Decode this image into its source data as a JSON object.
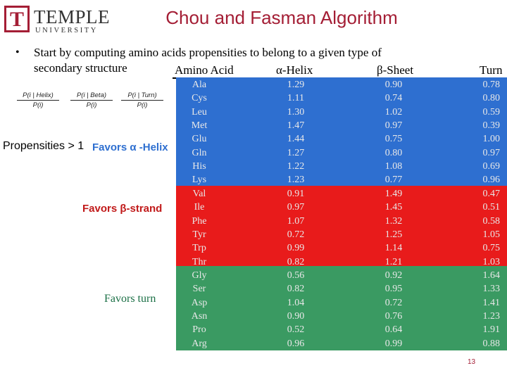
{
  "logo": {
    "letter": "T",
    "name": "TEMPLE",
    "sub": "UNIVERSITY",
    "brand_color": "#a41e35"
  },
  "slide": {
    "title": "Chou and Fasman Algorithm",
    "bullet": "•",
    "intro": "Start by computing amino acids propensities to belong to a given type of secondary structure",
    "page_number": "13"
  },
  "table": {
    "headers": {
      "amino_acid": "Amino Acid",
      "helix": "α-Helix",
      "sheet": "β-Sheet",
      "turn": "Turn"
    },
    "band_colors": {
      "helix": "#2e6fd0",
      "strand": "#e81b1b",
      "turn": "#3a9a62"
    },
    "rows": [
      {
        "aa": "Ala",
        "helix": "1.29",
        "sheet": "0.90",
        "turn": "0.78"
      },
      {
        "aa": "Cys",
        "helix": "1.11",
        "sheet": "0.74",
        "turn": "0.80"
      },
      {
        "aa": "Leu",
        "helix": "1.30",
        "sheet": "1.02",
        "turn": "0.59"
      },
      {
        "aa": "Met",
        "helix": "1.47",
        "sheet": "0.97",
        "turn": "0.39"
      },
      {
        "aa": "Glu",
        "helix": "1.44",
        "sheet": "0.75",
        "turn": "1.00"
      },
      {
        "aa": "Gln",
        "helix": "1.27",
        "sheet": "0.80",
        "turn": "0.97"
      },
      {
        "aa": "His",
        "helix": "1.22",
        "sheet": "1.08",
        "turn": "0.69"
      },
      {
        "aa": "Lys",
        "helix": "1.23",
        "sheet": "0.77",
        "turn": "0.96"
      },
      {
        "aa": "Val",
        "helix": "0.91",
        "sheet": "1.49",
        "turn": "0.47"
      },
      {
        "aa": "Ile",
        "helix": "0.97",
        "sheet": "1.45",
        "turn": "0.51"
      },
      {
        "aa": "Phe",
        "helix": "1.07",
        "sheet": "1.32",
        "turn": "0.58"
      },
      {
        "aa": "Tyr",
        "helix": "0.72",
        "sheet": "1.25",
        "turn": "1.05"
      },
      {
        "aa": "Trp",
        "helix": "0.99",
        "sheet": "1.14",
        "turn": "0.75"
      },
      {
        "aa": "Thr",
        "helix": "0.82",
        "sheet": "1.21",
        "turn": "1.03"
      },
      {
        "aa": "Gly",
        "helix": "0.56",
        "sheet": "0.92",
        "turn": "1.64"
      },
      {
        "aa": "Ser",
        "helix": "0.82",
        "sheet": "0.95",
        "turn": "1.33"
      },
      {
        "aa": "Asp",
        "helix": "1.04",
        "sheet": "0.72",
        "turn": "1.41"
      },
      {
        "aa": "Asn",
        "helix": "0.90",
        "sheet": "0.76",
        "turn": "1.23"
      },
      {
        "aa": "Pro",
        "helix": "0.52",
        "sheet": "0.64",
        "turn": "1.91"
      },
      {
        "aa": "Arg",
        "helix": "0.96",
        "sheet": "0.99",
        "turn": "0.88"
      }
    ]
  },
  "formulas": [
    {
      "numerator": "P(i | Helix)",
      "denominator": "P(i)"
    },
    {
      "numerator": "P(i | Beta)",
      "denominator": "P(i)"
    },
    {
      "numerator": "P(i | Turn)",
      "denominator": "P(i)"
    }
  ],
  "labels": {
    "propensities": "Propensities > 1",
    "favors_alpha": "Favors α -Helix",
    "favors_beta": "Favors β-strand",
    "favors_turn": "Favors turn"
  }
}
